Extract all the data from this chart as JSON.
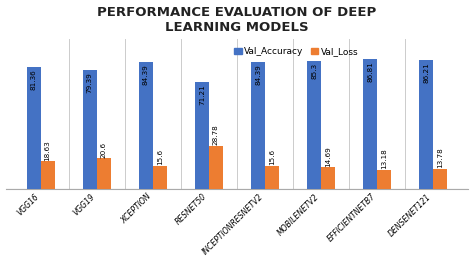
{
  "title": "PERFORMANCE EVALUATION OF DEEP\nLEARNING MODELS",
  "categories": [
    "VGG16",
    "VGG19",
    "XCEPTION",
    "RESNET50",
    "INCEPTIONRESNETV2",
    "MOBILENETV2",
    "EFFICIENTNETB7",
    "DENSENET121"
  ],
  "val_accuracy": [
    81.36,
    79.39,
    84.39,
    71.21,
    84.39,
    85.3,
    86.81,
    86.21
  ],
  "val_loss": [
    18.63,
    20.6,
    15.6,
    28.78,
    15.6,
    14.69,
    13.18,
    13.78
  ],
  "bar_color_acc": "#4472c4",
  "bar_color_loss": "#ed7d31",
  "legend_acc": "Val_Accuracy",
  "legend_loss": "Val_Loss",
  "background_color": "#ffffff",
  "plot_bg_color": "#ffffff",
  "ylim": [
    0,
    100
  ],
  "bar_width": 0.25,
  "title_fontsize": 9.5,
  "label_fontsize": 5.2,
  "tick_fontsize": 5.5,
  "legend_fontsize": 6.5
}
